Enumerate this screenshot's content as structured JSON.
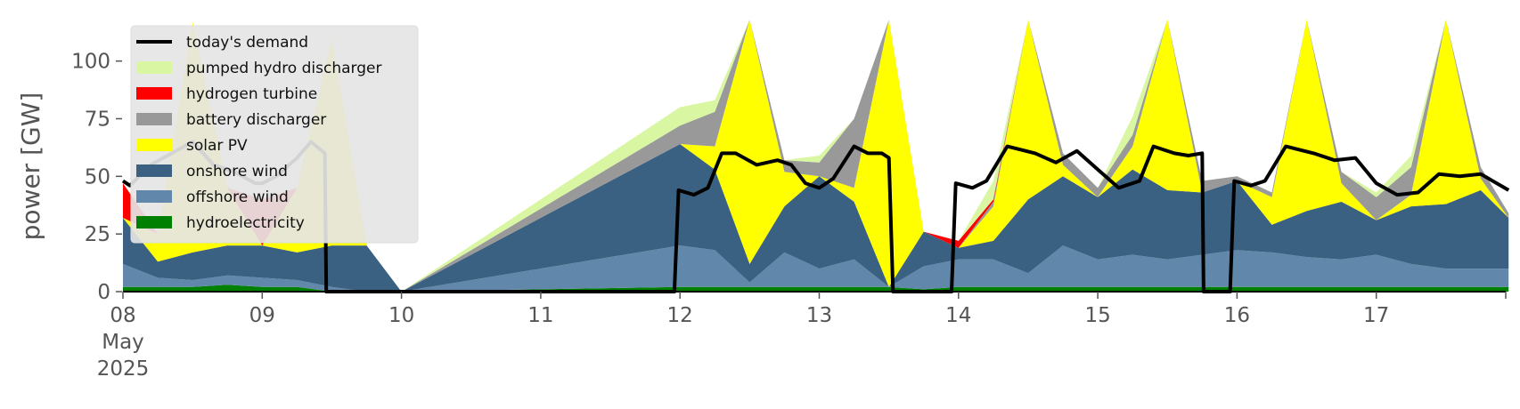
{
  "chart_data": {
    "type": "area",
    "ylabel": "power [GW]",
    "xlabel": "",
    "ylim": [
      0,
      118
    ],
    "xlim": [
      "2025-05-08 00:00",
      "2025-05-17 23:00"
    ],
    "grid": false,
    "legend_position": "top-left",
    "x_ticks": [
      {
        "label": "08",
        "sublabel": "May",
        "sublabel2": "2025"
      },
      {
        "label": "09"
      },
      {
        "label": "10"
      },
      {
        "label": "11"
      },
      {
        "label": "12"
      },
      {
        "label": "13"
      },
      {
        "label": "14"
      },
      {
        "label": "15"
      },
      {
        "label": "16"
      },
      {
        "label": "17"
      }
    ],
    "y_ticks": [
      0,
      25,
      50,
      75,
      100
    ],
    "legend": [
      {
        "name": "today's demand",
        "color": "#000000",
        "kind": "line"
      },
      {
        "name": "pumped hydro discharger",
        "color": "#d9f7a3",
        "kind": "patch"
      },
      {
        "name": "hydrogen turbine",
        "color": "#ff0000",
        "kind": "patch"
      },
      {
        "name": "battery discharger",
        "color": "#999999",
        "kind": "patch"
      },
      {
        "name": "solar PV",
        "color": "#ffff00",
        "kind": "patch"
      },
      {
        "name": "onshore wind",
        "color": "#3b6182",
        "kind": "patch"
      },
      {
        "name": "offshore wind",
        "color": "#6188aa",
        "kind": "patch"
      },
      {
        "name": "hydroelectricity",
        "color": "#008000",
        "kind": "patch"
      }
    ],
    "x_days": [
      0,
      0.25,
      0.5,
      0.75,
      1,
      1.25,
      1.5,
      1.75,
      2,
      4,
      4.25,
      4.5,
      4.75,
      5,
      5.25,
      5.5,
      5.75,
      6,
      6.25,
      6.5,
      6.75,
      7,
      7.25,
      7.5,
      7.75,
      8,
      8.25,
      8.5,
      8.75,
      9,
      9.25,
      9.5,
      9.75,
      9.95
    ],
    "series": [
      {
        "name": "hydroelectricity",
        "color": "#008000",
        "values": [
          2,
          2,
          2,
          3,
          2,
          2,
          0,
          0,
          0,
          2,
          2,
          2,
          2,
          2,
          2,
          2,
          1,
          2,
          2,
          2,
          2,
          2,
          2,
          2,
          2,
          2,
          2,
          2,
          2,
          2,
          2,
          2,
          2,
          2
        ]
      },
      {
        "name": "offshore wind",
        "color": "#6188aa",
        "values": [
          10,
          4,
          3,
          4,
          4,
          3,
          2,
          0,
          0,
          18,
          16,
          2,
          15,
          8,
          12,
          0,
          10,
          12,
          12,
          6,
          18,
          12,
          14,
          12,
          14,
          16,
          15,
          13,
          12,
          14,
          10,
          8,
          8,
          8
        ]
      },
      {
        "name": "onshore wind",
        "color": "#3b6182",
        "values": [
          20,
          7,
          12,
          13,
          14,
          12,
          18,
          20,
          0,
          44,
          35,
          8,
          20,
          40,
          25,
          0,
          15,
          5,
          8,
          32,
          30,
          27,
          37,
          30,
          27,
          30,
          12,
          20,
          25,
          15,
          25,
          28,
          34,
          22
        ]
      },
      {
        "name": "solar PV",
        "color": "#ffff00",
        "values": [
          0,
          12,
          100,
          25,
          0,
          28,
          90,
          0,
          0,
          0,
          10,
          110,
          15,
          0,
          6,
          118,
          0,
          0,
          15,
          110,
          5,
          0,
          10,
          105,
          0,
          0,
          12,
          105,
          8,
          0,
          5,
          110,
          5,
          0
        ]
      },
      {
        "name": "battery discharger",
        "color": "#999999",
        "values": [
          0,
          0,
          0,
          0,
          0,
          0,
          0,
          0,
          0,
          8,
          15,
          0,
          5,
          6,
          30,
          0,
          0,
          0,
          2,
          0,
          5,
          4,
          5,
          0,
          5,
          2,
          2,
          0,
          5,
          10,
          12,
          0,
          5,
          2
        ]
      },
      {
        "name": "hydrogen turbine",
        "color": "#ff0000",
        "values": [
          15,
          0,
          0,
          0,
          20,
          0,
          0,
          0,
          0,
          0,
          0,
          0,
          0,
          0,
          0,
          0,
          0,
          3,
          1,
          0,
          0,
          0,
          0,
          0,
          0,
          0,
          0,
          0,
          0,
          0,
          0,
          0,
          0,
          0
        ]
      },
      {
        "name": "pumped hydro discharger",
        "color": "#d9f7a3",
        "values": [
          0,
          0,
          0,
          0,
          0,
          0,
          0,
          0,
          0,
          8,
          5,
          0,
          0,
          3,
          0,
          0,
          0,
          0,
          8,
          0,
          0,
          0,
          8,
          0,
          0,
          0,
          0,
          0,
          0,
          2,
          5,
          0,
          0,
          0
        ]
      }
    ],
    "demand": {
      "name": "today's demand",
      "x_days": [
        0,
        0.05,
        0.2,
        0.35,
        0.5,
        0.65,
        0.8,
        0.95,
        1.0,
        1.1,
        1.25,
        1.35,
        1.45,
        1.46,
        3.96,
        3.99,
        4.1,
        4.2,
        4.3,
        4.4,
        4.55,
        4.7,
        4.8,
        4.9,
        5.0,
        5.1,
        5.25,
        5.35,
        5.45,
        5.5,
        5.53,
        5.95,
        5.98,
        6.1,
        6.2,
        6.35,
        6.55,
        6.7,
        6.85,
        7.0,
        7.15,
        7.3,
        7.4,
        7.55,
        7.65,
        7.75,
        7.76,
        7.95,
        7.98,
        8.1,
        8.2,
        8.35,
        8.55,
        8.7,
        8.85,
        9.0,
        9.15,
        9.3,
        9.45,
        9.6,
        9.75,
        9.95
      ],
      "values": [
        48,
        46,
        55,
        60,
        65,
        55,
        52,
        47,
        47,
        50,
        58,
        65,
        60,
        0,
        0,
        44,
        42,
        45,
        60,
        60,
        55,
        57,
        55,
        47,
        45,
        49,
        63,
        60,
        60,
        58,
        0,
        0,
        47,
        45,
        48,
        63,
        60,
        56,
        61,
        53,
        45,
        48,
        63,
        60,
        59,
        60,
        0,
        0,
        48,
        46,
        48,
        63,
        60,
        57,
        58,
        47,
        42,
        43,
        51,
        50,
        51,
        44
      ]
    }
  }
}
